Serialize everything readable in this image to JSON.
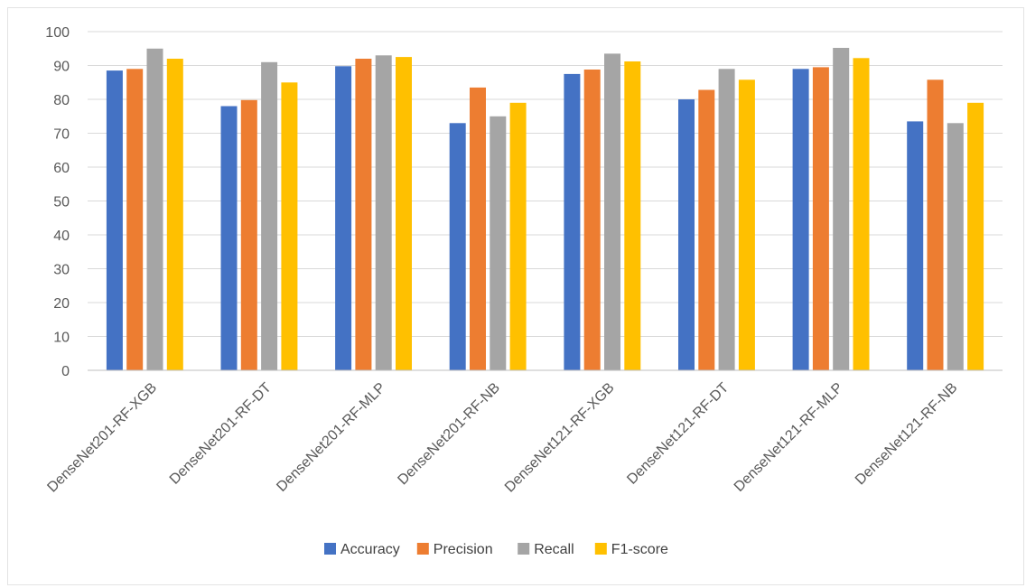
{
  "chart_data": {
    "type": "bar",
    "title": "",
    "xlabel": "",
    "ylabel": "",
    "ylim": [
      0,
      100
    ],
    "yticks": [
      0,
      10,
      20,
      30,
      40,
      50,
      60,
      70,
      80,
      90,
      100
    ],
    "grid": true,
    "legend_position": "bottom",
    "categories": [
      "DenseNet201-RF-XGB",
      "DenseNet201-RF-DT",
      "DenseNet201-RF-MLP",
      "DenseNet201-RF-NB",
      "DenseNet121-RF-XGB",
      "DenseNet121-RF-DT",
      "DenseNet121-RF-MLP",
      "DenseNet121-RF-NB"
    ],
    "series": [
      {
        "name": "Accuracy",
        "color": "#4472C4",
        "values": [
          88.5,
          78,
          89.8,
          73,
          87.5,
          80,
          89,
          73.5
        ]
      },
      {
        "name": "Precision",
        "color": "#ED7D31",
        "values": [
          89,
          79.8,
          92,
          83.5,
          88.8,
          82.8,
          89.5,
          85.8
        ]
      },
      {
        "name": "Recall",
        "color": "#A5A5A5",
        "values": [
          95,
          91,
          93,
          75,
          93.5,
          89,
          95.2,
          73
        ]
      },
      {
        "name": "F1-score",
        "color": "#FFC000",
        "values": [
          92,
          85,
          92.5,
          79,
          91.2,
          85.8,
          92.2,
          79
        ]
      }
    ]
  }
}
